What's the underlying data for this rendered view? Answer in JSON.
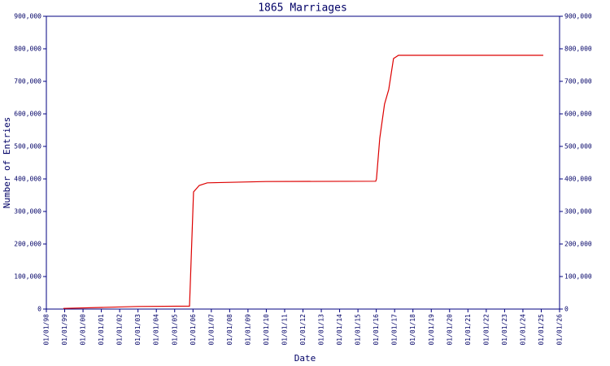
{
  "chart_data": {
    "type": "line",
    "title": "1865 Marriages",
    "x_label": "Date",
    "y_label": "Number of Entries",
    "xlim": [
      1998,
      2026
    ],
    "xticks": [
      {
        "value": 1998,
        "label": "01/01/98"
      },
      {
        "value": 1999,
        "label": "01/01/99"
      },
      {
        "value": 2000,
        "label": "01/01/00"
      },
      {
        "value": 2001,
        "label": "01/01/01"
      },
      {
        "value": 2002,
        "label": "01/01/02"
      },
      {
        "value": 2003,
        "label": "01/01/03"
      },
      {
        "value": 2004,
        "label": "01/01/04"
      },
      {
        "value": 2005,
        "label": "01/01/05"
      },
      {
        "value": 2006,
        "label": "01/01/06"
      },
      {
        "value": 2007,
        "label": "01/01/07"
      },
      {
        "value": 2008,
        "label": "01/01/08"
      },
      {
        "value": 2009,
        "label": "01/01/09"
      },
      {
        "value": 2010,
        "label": "01/01/10"
      },
      {
        "value": 2011,
        "label": "01/01/11"
      },
      {
        "value": 2012,
        "label": "01/01/12"
      },
      {
        "value": 2013,
        "label": "01/01/13"
      },
      {
        "value": 2014,
        "label": "01/01/14"
      },
      {
        "value": 2015,
        "label": "01/01/15"
      },
      {
        "value": 2016,
        "label": "01/01/16"
      },
      {
        "value": 2017,
        "label": "01/01/17"
      },
      {
        "value": 2018,
        "label": "01/01/18"
      },
      {
        "value": 2019,
        "label": "01/01/19"
      },
      {
        "value": 2020,
        "label": "01/01/20"
      },
      {
        "value": 2021,
        "label": "01/01/21"
      },
      {
        "value": 2022,
        "label": "01/01/22"
      },
      {
        "value": 2023,
        "label": "01/01/23"
      },
      {
        "value": 2024,
        "label": "01/01/24"
      },
      {
        "value": 2025,
        "label": "01/01/25"
      },
      {
        "value": 2026,
        "label": "01/01/26"
      }
    ],
    "ylim": [
      0,
      900000
    ],
    "yticks": [
      0,
      {
        "value": 100000,
        "label": "100,000"
      },
      {
        "value": 200000,
        "label": "200,000"
      },
      {
        "value": 300000,
        "label": "300,000"
      },
      {
        "value": 400000,
        "label": "400,000"
      },
      {
        "value": 500000,
        "label": "500,000"
      },
      {
        "value": 600000,
        "label": "600,000"
      },
      {
        "value": 700000,
        "label": "700,000"
      },
      {
        "value": 800000,
        "label": "800,000"
      },
      {
        "value": 900000,
        "label": "900,000"
      }
    ],
    "axis_color": "#000080",
    "series": [
      {
        "color": "#dd0000",
        "x": [
          1998.93,
          2001.02,
          2003.01,
          2005.81,
          2006.03,
          2006.34,
          2006.78,
          2009.98,
          2015.97,
          2016.01,
          2016.19,
          2016.45,
          2016.68,
          2016.94,
          2017.21,
          2025.11
        ],
        "values": [
          2000,
          5000,
          8000,
          9000,
          360000,
          380000,
          388000,
          392000,
          393000,
          400000,
          525000,
          630000,
          675000,
          770000,
          780000,
          780000
        ]
      }
    ]
  }
}
